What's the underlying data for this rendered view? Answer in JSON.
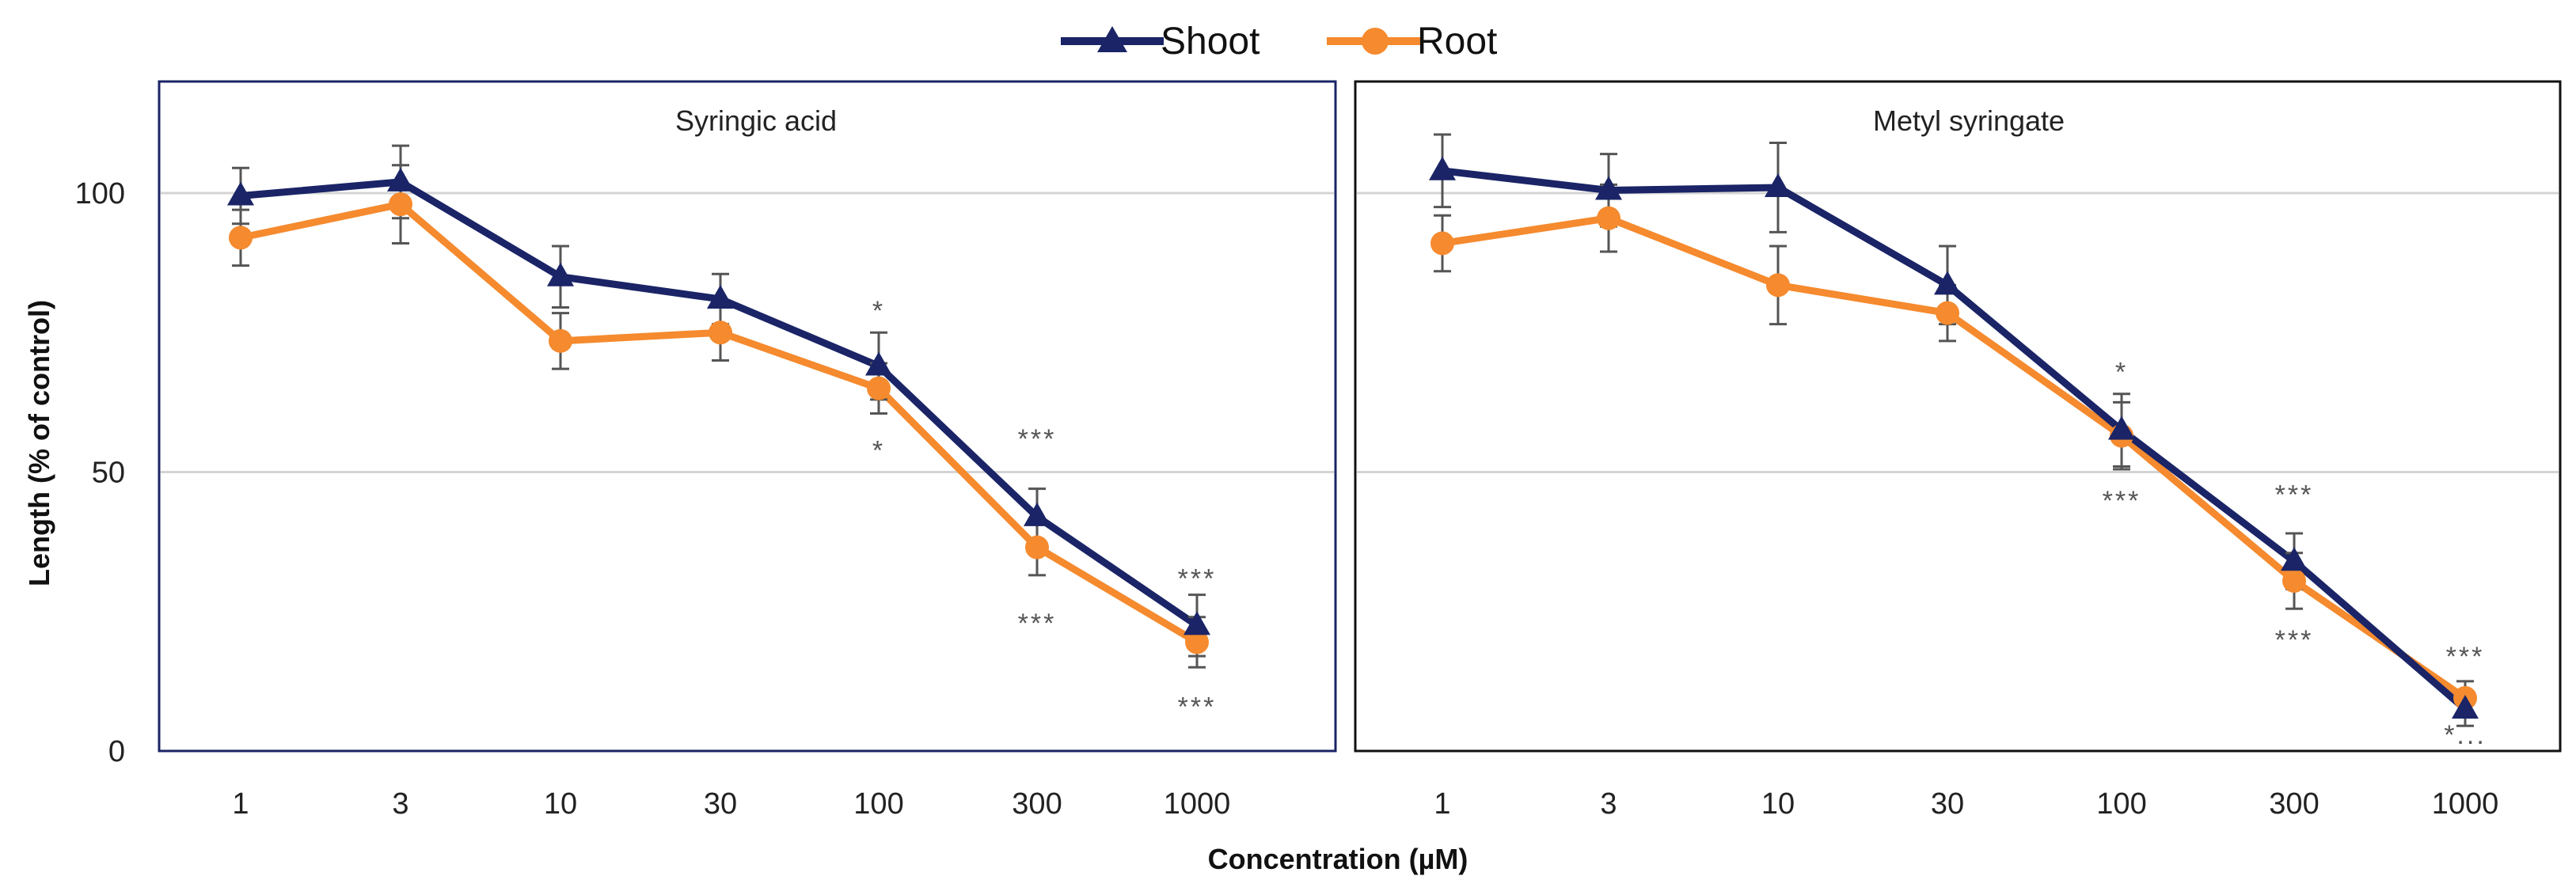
{
  "colors": {
    "shoot": "#1a2466",
    "root": "#f58a2e",
    "grid": "#d4d4d4",
    "error_bar": "#555555",
    "axis": "#333333"
  },
  "legend": {
    "shoot": "Shoot",
    "root": "Root"
  },
  "chart_data": [
    {
      "type": "line",
      "title": "Syringic acid",
      "xlabel": "Concentration (µM)",
      "ylabel": "Length (% of control)",
      "ylim": [
        0,
        120
      ],
      "yticks": [
        0,
        50,
        100
      ],
      "grid": true,
      "categories": [
        "1",
        "3",
        "10",
        "30",
        "100",
        "300",
        "1000"
      ],
      "series": [
        {
          "name": "Shoot",
          "marker": "triangle",
          "values": [
            99.5,
            102,
            85,
            81,
            69,
            42,
            22.5
          ],
          "errors": [
            5,
            6.5,
            5.5,
            4.5,
            6,
            5,
            5.5
          ]
        },
        {
          "name": "Root",
          "marker": "circle",
          "values": [
            92,
            98,
            73.5,
            75,
            65,
            36.5,
            19.5
          ],
          "errors": [
            5,
            7,
            5,
            5,
            4.5,
            5,
            4.5
          ]
        }
      ],
      "annotations": [
        {
          "text": "*",
          "category": "100",
          "y": 79
        },
        {
          "text": "*",
          "category": "100",
          "y": 54
        },
        {
          "text": "***",
          "category": "300",
          "y": 56
        },
        {
          "text": "***",
          "category": "300",
          "y": 23
        },
        {
          "text": "***",
          "category": "1000",
          "y": 31
        },
        {
          "text": "***",
          "category": "1000",
          "y": 8
        }
      ]
    },
    {
      "type": "line",
      "title": "Metyl syringate",
      "xlabel": "Concentration (µM)",
      "ylabel": "Length (% of control)",
      "ylim": [
        0,
        120
      ],
      "yticks": [
        0,
        50,
        100
      ],
      "grid": true,
      "categories": [
        "1",
        "3",
        "10",
        "30",
        "100",
        "300",
        "1000"
      ],
      "series": [
        {
          "name": "Shoot",
          "marker": "triangle",
          "values": [
            104,
            100.5,
            101,
            83.5,
            57.5,
            34,
            7.5
          ],
          "errors": [
            6.5,
            6.5,
            8,
            7,
            6.5,
            5,
            3
          ]
        },
        {
          "name": "Root",
          "marker": "circle",
          "values": [
            91,
            95.5,
            83.5,
            78.5,
            56.5,
            30.5,
            9.5
          ],
          "errors": [
            5,
            6,
            7,
            5,
            6,
            5,
            3
          ]
        }
      ],
      "annotations": [
        {
          "text": "*",
          "category": "100",
          "y": 68
        },
        {
          "text": "***",
          "category": "100",
          "y": 45
        },
        {
          "text": "***",
          "category": "300",
          "y": 46
        },
        {
          "text": "***",
          "category": "300",
          "y": 20
        },
        {
          "text": "***",
          "category": "1000",
          "y": 17
        },
        {
          "text": "*...",
          "category": "1000",
          "y": 3
        }
      ]
    }
  ]
}
